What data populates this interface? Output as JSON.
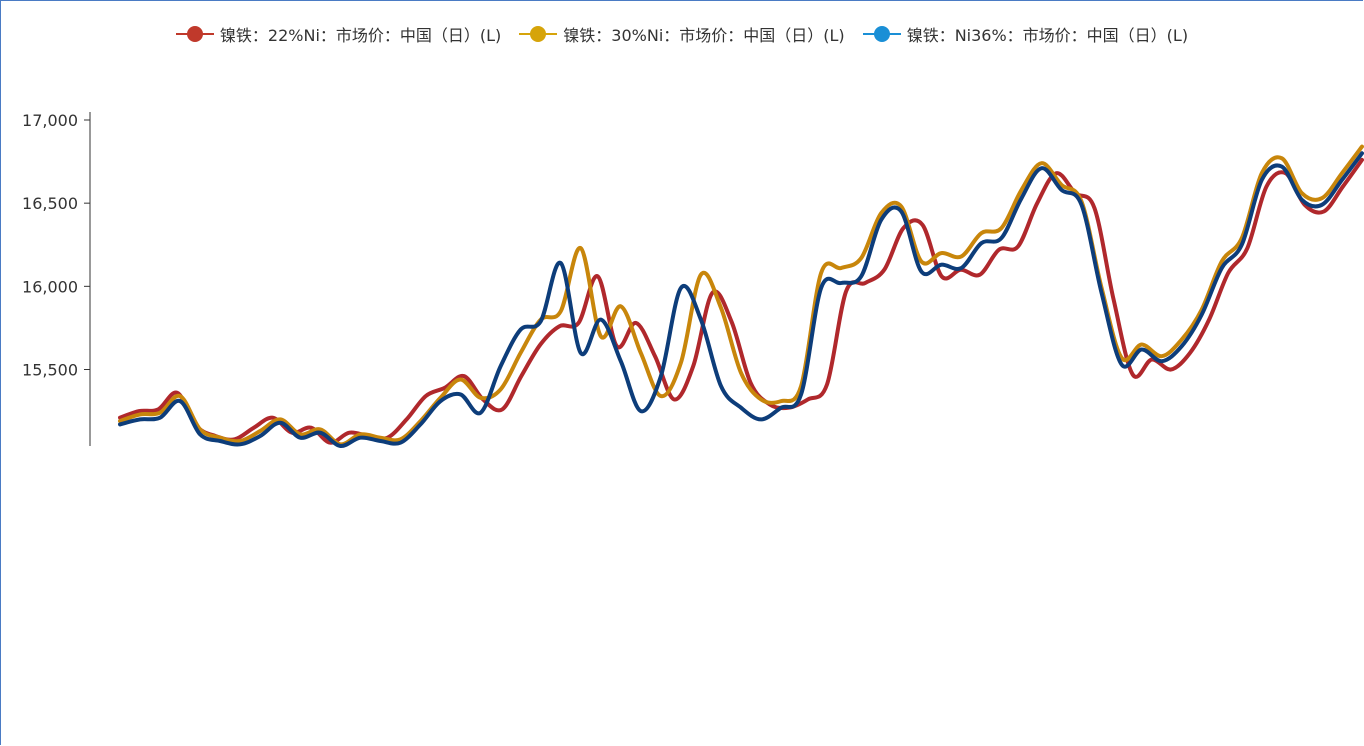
{
  "chart_data": {
    "type": "line",
    "title": "",
    "xlabel": "",
    "ylabel": "",
    "y_ticks": [
      "15,500",
      "16,000",
      "16,500",
      "17,000"
    ],
    "y_tick_values": [
      15500,
      16000,
      16500,
      17000
    ],
    "ylim": [
      15040,
      17000
    ],
    "legend_position": "top",
    "series": [
      {
        "name": "镍铁：22%Ni：市场价：中国（日）(L)",
        "color": "#b0282c",
        "marker_color": "#c0392b",
        "values": [
          15210,
          15250,
          15260,
          15360,
          15160,
          15100,
          15080,
          15150,
          15210,
          15120,
          15150,
          15060,
          15120,
          15100,
          15090,
          15200,
          15340,
          15390,
          15460,
          15320,
          15260,
          15460,
          15650,
          15760,
          15780,
          16060,
          15640,
          15780,
          15580,
          15320,
          15520,
          15960,
          15790,
          15420,
          15290,
          15270,
          15320,
          15410,
          15970,
          16020,
          16100,
          16350,
          16370,
          16060,
          16100,
          16070,
          16220,
          16240,
          16500,
          16680,
          16560,
          16470,
          15920,
          15470,
          15560,
          15500,
          15600,
          15800,
          16080,
          16230,
          16600,
          16680,
          16490,
          16450,
          16600,
          16760
        ]
      },
      {
        "name": "镍铁：30%Ni：市场价：中国（日）(L)",
        "color": "#c8860b",
        "marker_color": "#d6a40a",
        "values": [
          15190,
          15230,
          15240,
          15340,
          15140,
          15090,
          15070,
          15130,
          15200,
          15110,
          15140,
          15050,
          15110,
          15090,
          15080,
          15190,
          15330,
          15440,
          15330,
          15380,
          15600,
          15800,
          15850,
          16230,
          15700,
          15880,
          15600,
          15340,
          15540,
          16070,
          15870,
          15480,
          15320,
          15310,
          15400,
          16080,
          16110,
          16170,
          16440,
          16480,
          16150,
          16200,
          16180,
          16320,
          16350,
          16580,
          16740,
          16610,
          16510,
          15990,
          15570,
          15650,
          15580,
          15680,
          15860,
          16150,
          16290,
          16680,
          16770,
          16560,
          16530,
          16680,
          16840
        ]
      },
      {
        "name": "镍铁：Ni36%：市场价：中国（日）(L)",
        "color": "#0d3d7a",
        "marker_color": "#1a8fd6",
        "values": [
          15170,
          15200,
          15210,
          15310,
          15110,
          15070,
          15050,
          15100,
          15180,
          15090,
          15120,
          15040,
          15090,
          15070,
          15060,
          15170,
          15310,
          15350,
          15240,
          15520,
          15740,
          15790,
          16140,
          15600,
          15800,
          15550,
          15250,
          15460,
          15990,
          15800,
          15400,
          15270,
          15200,
          15270,
          15350,
          15990,
          16020,
          16060,
          16400,
          16450,
          16090,
          16130,
          16110,
          16260,
          16290,
          16530,
          16710,
          16580,
          16490,
          15960,
          15530,
          15620,
          15550,
          15640,
          15830,
          16110,
          16250,
          16640,
          16720,
          16520,
          16490,
          16640,
          16800
        ]
      }
    ]
  }
}
